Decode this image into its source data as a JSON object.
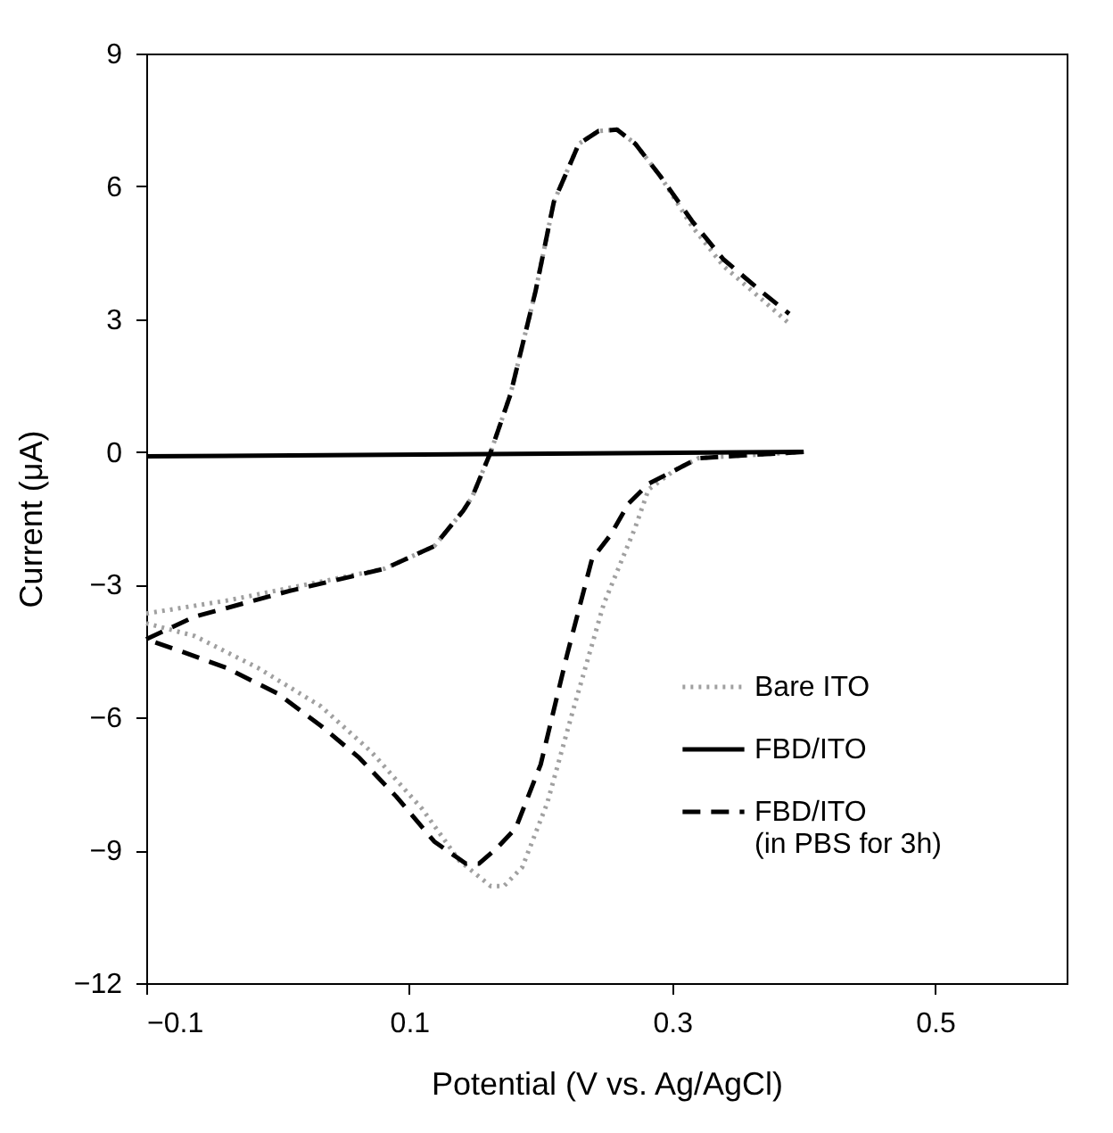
{
  "chart_data": {
    "type": "line",
    "xlabel": "Potential (V vs. Ag/AgCl)",
    "ylabel": "Current (μA)",
    "xlim": [
      -0.1,
      0.6
    ],
    "ylim": [
      -12,
      9
    ],
    "xticks": [
      -0.1,
      0.1,
      0.3,
      0.5
    ],
    "yticks": [
      -12,
      -9,
      -6,
      -3,
      0,
      3,
      6,
      9
    ],
    "legend": "bottom right",
    "grid": false,
    "marker": "none",
    "series": [
      {
        "name": "Bare ITO",
        "color": "#a0a0a0",
        "line_style": "dotted",
        "x": [
          -0.1,
          -0.039,
          0.033,
          0.081,
          0.119,
          0.141,
          0.148,
          0.162,
          0.177,
          0.196,
          0.21,
          0.229,
          0.244,
          0.258,
          0.272,
          0.291,
          0.315,
          0.339,
          0.368,
          0.389,
          0.395,
          0.4,
          0.32,
          0.301,
          0.282,
          0.272,
          0.248,
          0.224,
          0.205,
          0.186,
          0.172,
          0.162,
          0.138,
          0.11,
          0.071,
          0.033,
          -0.015,
          -0.063,
          -0.1
        ],
        "values": [
          -3.65,
          -3.36,
          -2.93,
          -2.64,
          -2.13,
          -1.33,
          -1.01,
          0,
          1.3,
          3.62,
          5.65,
          6.96,
          7.25,
          7.28,
          6.96,
          6.23,
          5.1,
          4.2,
          3.45,
          2.9,
          null,
          0,
          -0.14,
          -0.43,
          -0.85,
          -1.7,
          -3.43,
          -5.9,
          -7.93,
          -9.38,
          -9.81,
          -9.81,
          -9.23,
          -8.07,
          -6.77,
          -5.75,
          -4.88,
          -4.16,
          -3.87
        ]
      },
      {
        "name": "FBD/ITO",
        "color": "#000000",
        "line_style": "solid",
        "x": [
          -0.1,
          0.4
        ],
        "values": [
          -0.1,
          0
        ]
      },
      {
        "name": "FBD/ITO\n(in PBS for 3h)",
        "color": "#000000",
        "line_style": "dashed",
        "x": [
          -0.1,
          -0.063,
          0.009,
          0.081,
          0.119,
          0.141,
          0.148,
          0.162,
          0.177,
          0.196,
          0.21,
          0.229,
          0.244,
          0.258,
          0.272,
          0.291,
          0.315,
          0.339,
          0.368,
          0.389,
          0.395,
          0.4,
          0.32,
          0.301,
          0.282,
          0.267,
          0.253,
          0.239,
          0.22,
          0.2,
          0.181,
          0.167,
          0.153,
          0.143,
          0.119,
          0.09,
          0.062,
          0.033,
          0,
          -0.039,
          -0.072,
          -0.1
        ],
        "values": [
          -4.23,
          -3.72,
          -3.14,
          -2.64,
          -2.13,
          -1.33,
          -1.01,
          0,
          1.3,
          3.62,
          5.65,
          6.96,
          7.25,
          7.28,
          6.96,
          6.23,
          5.22,
          4.35,
          3.62,
          3.12,
          null,
          0,
          -0.14,
          -0.43,
          -0.72,
          -1.16,
          -1.88,
          -2.42,
          -4.59,
          -7.06,
          -8.5,
          -8.94,
          -9.3,
          -9.3,
          -8.8,
          -7.78,
          -6.91,
          -6.19,
          -5.46,
          -4.88,
          -4.52,
          -4.23
        ]
      }
    ]
  }
}
